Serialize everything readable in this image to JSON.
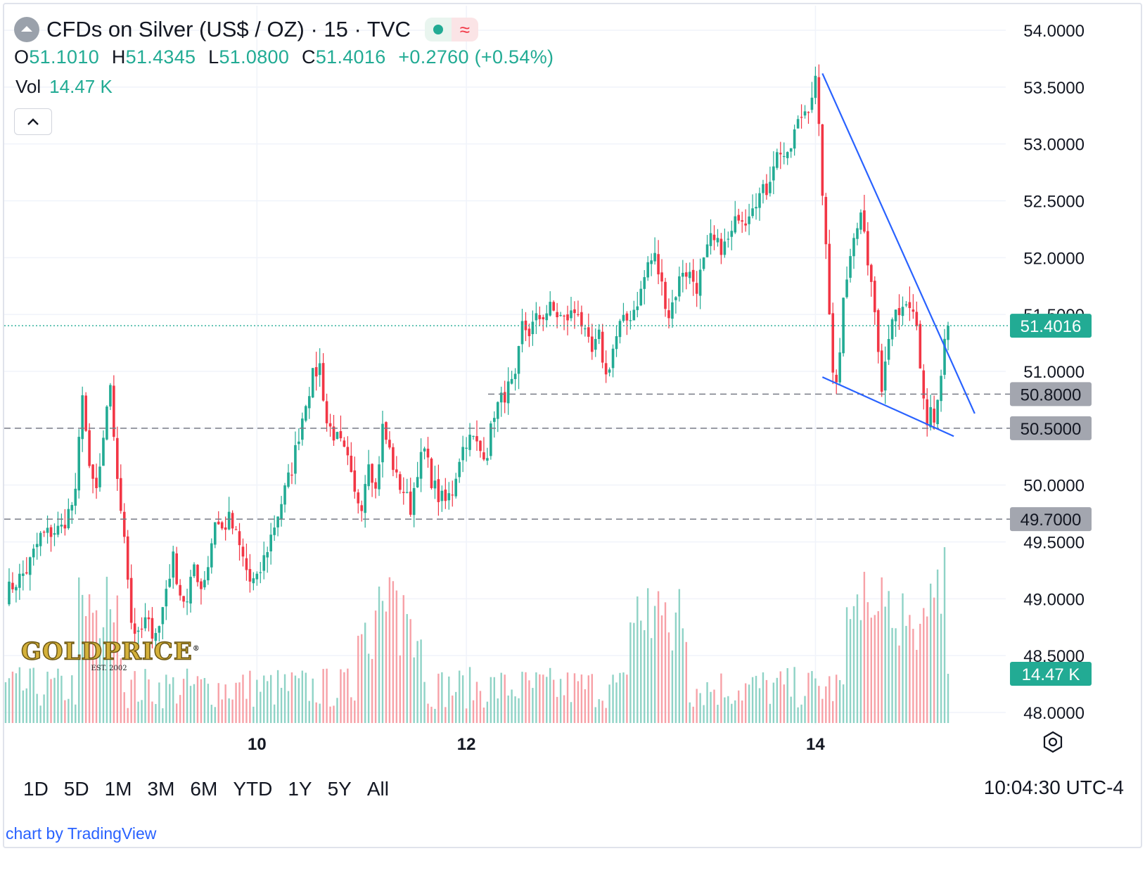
{
  "header": {
    "symbol_title": "CFDs on Silver (US$ / OZ) · 15 · TVC",
    "status_icon": "market-open-dot-icon",
    "wave_icon": "approx-wave-icon",
    "ohlc": {
      "o_label": "O",
      "o_value": "51.1010",
      "h_label": "H",
      "h_value": "51.4345",
      "l_label": "L",
      "l_value": "51.0800",
      "c_label": "C",
      "c_value": "51.4016",
      "change": "+0.2760 (+0.54%)"
    },
    "volume": {
      "label": "Vol",
      "value": "14.47 K"
    }
  },
  "colors": {
    "up": "#22ab94",
    "down": "#f23645",
    "up_volume": "#8fd3c6",
    "down_volume": "#f7a1a7",
    "trendline": "#2962ff",
    "level_line": "#787b86",
    "last_price_tag": "#22ab94",
    "level_tag": "#a3a6af"
  },
  "chart_data": {
    "type": "candlestick",
    "title": "CFDs on Silver (US$ / OZ) · 15 · TVC",
    "interval": "15",
    "ylim": [
      47.85,
      54.25
    ],
    "y_ticks": [
      "54.0000",
      "53.5000",
      "53.0000",
      "52.5000",
      "52.0000",
      "51.5000",
      "51.0000",
      "50.5000",
      "50.0000",
      "49.5000",
      "49.0000",
      "48.5000",
      "48.0000"
    ],
    "x_tick_labels": [
      {
        "label": "10",
        "at_index": 72
      },
      {
        "label": "12",
        "at_index": 132
      },
      {
        "label": "14",
        "at_index": 232
      }
    ],
    "close_path": [
      [
        0,
        49.05
      ],
      [
        6,
        49.25
      ],
      [
        10,
        49.55
      ],
      [
        16,
        49.62
      ],
      [
        20,
        49.9
      ],
      [
        22,
        50.85
      ],
      [
        24,
        50.1
      ],
      [
        26,
        49.95
      ],
      [
        28,
        50.35
      ],
      [
        30,
        50.9
      ],
      [
        32,
        50.0
      ],
      [
        34,
        49.6
      ],
      [
        36,
        48.8
      ],
      [
        38,
        48.65
      ],
      [
        40,
        48.8
      ],
      [
        42,
        48.72
      ],
      [
        44,
        48.75
      ],
      [
        46,
        49.1
      ],
      [
        48,
        49.35
      ],
      [
        50,
        49.05
      ],
      [
        52,
        48.95
      ],
      [
        54,
        49.3
      ],
      [
        56,
        49.1
      ],
      [
        58,
        49.3
      ],
      [
        60,
        49.7
      ],
      [
        62,
        49.6
      ],
      [
        64,
        49.7
      ],
      [
        66,
        49.55
      ],
      [
        68,
        49.35
      ],
      [
        70,
        49.15
      ],
      [
        72,
        49.15
      ],
      [
        74,
        49.35
      ],
      [
        76,
        49.55
      ],
      [
        78,
        49.75
      ],
      [
        80,
        49.95
      ],
      [
        82,
        50.15
      ],
      [
        84,
        50.45
      ],
      [
        86,
        50.75
      ],
      [
        88,
        50.95
      ],
      [
        90,
        51.05
      ],
      [
        92,
        50.55
      ],
      [
        94,
        50.45
      ],
      [
        96,
        50.35
      ],
      [
        98,
        50.2
      ],
      [
        100,
        49.9
      ],
      [
        102,
        49.85
      ],
      [
        104,
        50.25
      ],
      [
        106,
        49.95
      ],
      [
        108,
        50.5
      ],
      [
        110,
        50.3
      ],
      [
        112,
        50.05
      ],
      [
        114,
        49.95
      ],
      [
        116,
        49.8
      ],
      [
        118,
        50.15
      ],
      [
        120,
        50.3
      ],
      [
        122,
        50.05
      ],
      [
        124,
        49.9
      ],
      [
        126,
        49.85
      ],
      [
        128,
        49.95
      ],
      [
        130,
        50.25
      ],
      [
        132,
        50.4
      ],
      [
        134,
        50.4
      ],
      [
        136,
        50.3
      ],
      [
        138,
        50.3
      ],
      [
        140,
        50.65
      ],
      [
        142,
        50.75
      ],
      [
        144,
        50.85
      ],
      [
        146,
        50.9
      ],
      [
        148,
        51.4
      ],
      [
        150,
        51.35
      ],
      [
        152,
        51.45
      ],
      [
        154,
        51.5
      ],
      [
        156,
        51.55
      ],
      [
        158,
        51.5
      ],
      [
        160,
        51.45
      ],
      [
        162,
        51.5
      ],
      [
        164,
        51.55
      ],
      [
        166,
        51.3
      ],
      [
        168,
        51.15
      ],
      [
        170,
        51.3
      ],
      [
        172,
        50.95
      ],
      [
        174,
        51.2
      ],
      [
        176,
        51.4
      ],
      [
        178,
        51.45
      ],
      [
        180,
        51.55
      ],
      [
        182,
        51.7
      ],
      [
        184,
        51.95
      ],
      [
        186,
        52.0
      ],
      [
        188,
        51.75
      ],
      [
        190,
        51.5
      ],
      [
        192,
        51.7
      ],
      [
        194,
        51.9
      ],
      [
        196,
        51.85
      ],
      [
        198,
        51.75
      ],
      [
        200,
        51.95
      ],
      [
        202,
        52.15
      ],
      [
        204,
        52.1
      ],
      [
        206,
        52.1
      ],
      [
        208,
        52.2
      ],
      [
        210,
        52.4
      ],
      [
        212,
        52.35
      ],
      [
        214,
        52.5
      ],
      [
        216,
        52.55
      ],
      [
        218,
        52.6
      ],
      [
        220,
        52.85
      ],
      [
        222,
        52.95
      ],
      [
        224,
        52.85
      ],
      [
        226,
        53.1
      ],
      [
        228,
        53.25
      ],
      [
        230,
        53.35
      ],
      [
        232,
        53.55
      ],
      [
        233,
        53.1
      ],
      [
        234,
        52.6
      ],
      [
        235,
        52.05
      ],
      [
        236,
        51.5
      ],
      [
        237,
        51.05
      ],
      [
        238,
        50.95
      ],
      [
        239,
        51.15
      ],
      [
        240,
        51.7
      ],
      [
        242,
        52.05
      ],
      [
        244,
        52.25
      ],
      [
        245,
        52.4
      ],
      [
        246,
        52.15
      ],
      [
        247,
        52.0
      ],
      [
        248,
        51.8
      ],
      [
        249,
        51.55
      ],
      [
        250,
        51.25
      ],
      [
        251,
        50.9
      ],
      [
        252,
        51.1
      ],
      [
        253,
        51.35
      ],
      [
        254,
        51.5
      ],
      [
        256,
        51.45
      ],
      [
        258,
        51.6
      ],
      [
        259,
        51.5
      ],
      [
        260,
        51.45
      ],
      [
        261,
        51.35
      ],
      [
        262,
        51.0
      ],
      [
        263,
        50.75
      ],
      [
        264,
        50.55
      ],
      [
        265,
        50.7
      ],
      [
        266,
        50.55
      ],
      [
        267,
        50.75
      ],
      [
        268,
        50.95
      ],
      [
        269,
        51.25
      ],
      [
        270,
        51.4016
      ]
    ],
    "volume_unit": "K",
    "last_volume": "14.47 K",
    "last_price": "51.4016",
    "horizontal_levels": [
      {
        "price": 50.8,
        "label": "50.8000"
      },
      {
        "price": 50.5,
        "label": "50.5000"
      },
      {
        "price": 49.7,
        "label": "49.7000"
      }
    ],
    "trendlines": [
      {
        "from": [
          234,
          53.62
        ],
        "to": [
          274,
          50.58
        ]
      },
      {
        "from": [
          234,
          50.95
        ],
        "to": [
          268,
          50.38
        ]
      }
    ],
    "grid": true
  },
  "toolbar": {
    "ranges": [
      "1D",
      "5D",
      "1M",
      "3M",
      "6M",
      "YTD",
      "1Y",
      "5Y",
      "All"
    ],
    "clock": "10:04:30 UTC-4",
    "settings_icon": "gear-hexagon-icon",
    "collapse_icon": "chevron-up-icon"
  },
  "watermark": {
    "brand": "GOLDPRICE",
    "registered": "®",
    "est": "EST. 2002"
  },
  "footer": {
    "attribution": "chart by TradingView"
  }
}
